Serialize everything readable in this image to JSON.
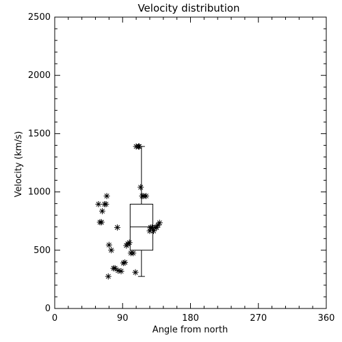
{
  "chart_data": {
    "type": "scatter",
    "title": "Velocity distribution",
    "xlabel": "Angle from north",
    "ylabel": "Velocity (km/s)",
    "xlim": [
      0,
      360
    ],
    "ylim": [
      0,
      2500
    ],
    "xticks": [
      0,
      90,
      180,
      270,
      360
    ],
    "yticks": [
      0,
      500,
      1000,
      1500,
      2000,
      2500
    ],
    "x_minor_step": 18,
    "y_minor_step": 100,
    "grid": false,
    "series": [
      {
        "marker": "asterisk",
        "points": [
          [
            58,
            895
          ],
          [
            60,
            740
          ],
          [
            62,
            740
          ],
          [
            63,
            835
          ],
          [
            66,
            895
          ],
          [
            68,
            895
          ],
          [
            69,
            965
          ],
          [
            72,
            545
          ],
          [
            75,
            500
          ],
          [
            71,
            275
          ],
          [
            78,
            345
          ],
          [
            80,
            345
          ],
          [
            83,
            695
          ],
          [
            84,
            325
          ],
          [
            88,
            320
          ],
          [
            91,
            390
          ],
          [
            93,
            395
          ],
          [
            95,
            540
          ],
          [
            97,
            555
          ],
          [
            99,
            565
          ],
          [
            101,
            475
          ],
          [
            104,
            475
          ],
          [
            107,
            310
          ],
          [
            108,
            1390
          ],
          [
            111,
            1390
          ],
          [
            112,
            1390
          ],
          [
            114,
            1040
          ],
          [
            116,
            965
          ],
          [
            118,
            965
          ],
          [
            121,
            965
          ],
          [
            126,
            665
          ],
          [
            127,
            695
          ],
          [
            129,
            695
          ],
          [
            131,
            665
          ],
          [
            133,
            695
          ],
          [
            135,
            695
          ],
          [
            137,
            715
          ],
          [
            139,
            735
          ]
        ]
      }
    ],
    "boxplot": {
      "x_range": [
        100,
        130
      ],
      "whisker_low": 275,
      "q1": 500,
      "median": 700,
      "q3": 895,
      "whisker_high": 1390
    }
  }
}
